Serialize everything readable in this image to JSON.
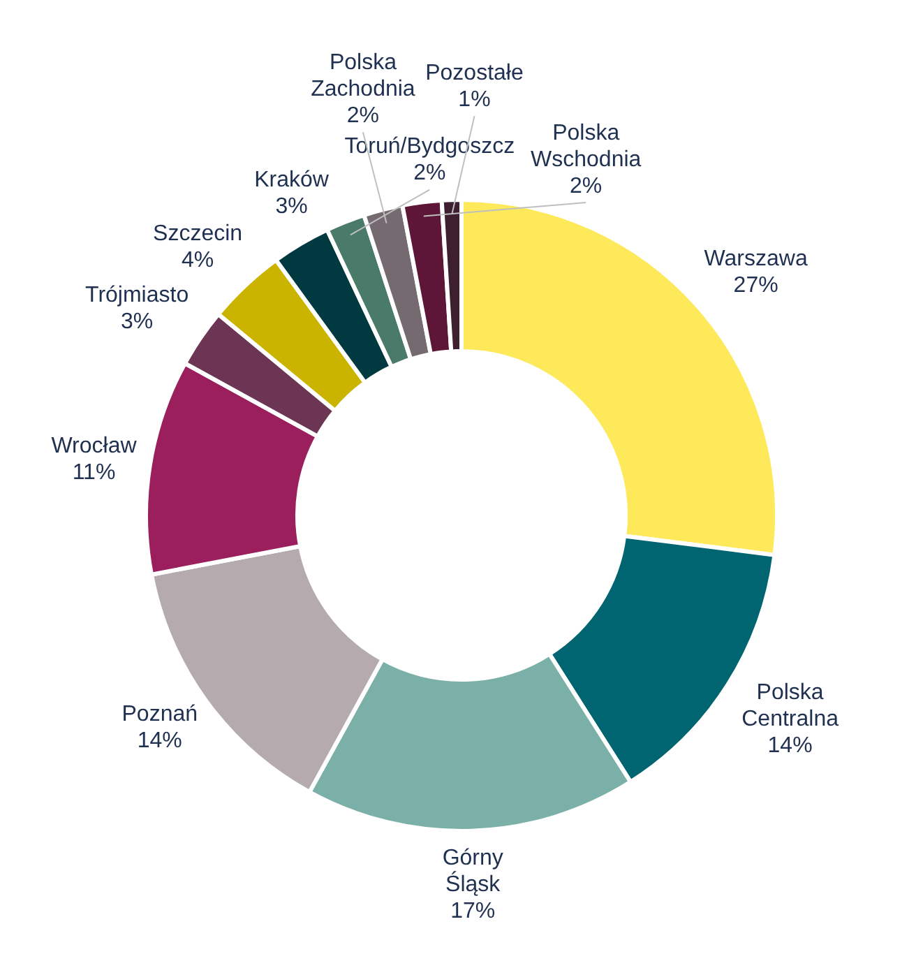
{
  "chart_data": {
    "type": "donut",
    "categories": [
      "Warszawa",
      "Polska Centralna",
      "Górny Śląsk",
      "Poznań",
      "Wrocław",
      "Trójmiasto",
      "Szczecin",
      "Kraków",
      "Toruń/Bydgoszcz",
      "Polska Zachodnia",
      "Polska Wschodnia",
      "Pozostałe"
    ],
    "values": [
      27,
      14,
      17,
      14,
      11,
      3,
      4,
      3,
      2,
      2,
      2,
      1
    ],
    "value_labels": [
      "27%",
      "14%",
      "17%",
      "14%",
      "11%",
      "3%",
      "4%",
      "3%",
      "2%",
      "2%",
      "2%",
      "1%"
    ],
    "colors": [
      "#fde95a",
      "#006570",
      "#7ab0a8",
      "#b5aaae",
      "#9b1f5c",
      "#6b3553",
      "#cbb400",
      "#003a40",
      "#4a7a6a",
      "#756a70",
      "#5e1638",
      "#3d1f30"
    ],
    "legend": false
  }
}
